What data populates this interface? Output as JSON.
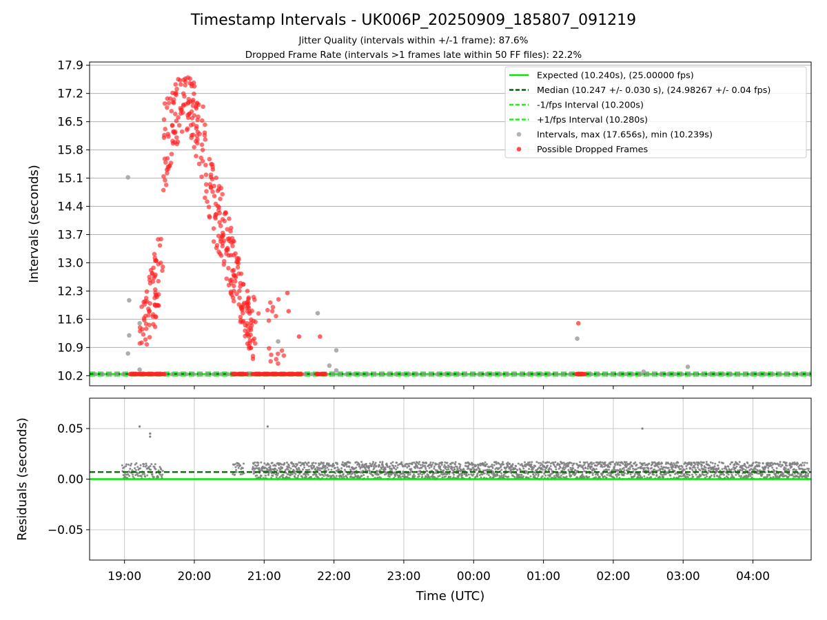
{
  "title": "Timestamp Intervals - UK006P_20250909_185807_091219",
  "subtitle_lines": [
    "Jitter Quality (intervals within +/-1 frame): 87.6%",
    "Dropped Frame Rate (intervals >1 frames late within 50 FF files): 22.2%"
  ],
  "colors": {
    "expected": "#00e600",
    "median": "#006400",
    "fps_bounds": "#22ee22",
    "intervals": "#a0a0a0",
    "dropped": "#ff2222",
    "residuals": "#808080"
  },
  "chart_data": [
    {
      "type": "scatter",
      "panel": "top",
      "title": "Timestamp Intervals - UK006P_20250909_185807_091219",
      "xlabel": "",
      "ylabel": "Intervals (seconds)",
      "x_unit": "time (UTC), 2025-09-09 to 2025-09-10",
      "xlim": [
        "18:30",
        "04:50"
      ],
      "ylim": [
        9.95,
        17.98
      ],
      "yticks": [
        "10.2",
        "10.9",
        "11.6",
        "12.3",
        "13.0",
        "13.7",
        "14.4",
        "15.1",
        "15.8",
        "16.5",
        "17.2",
        "17.9"
      ],
      "grid": true,
      "legend_position": "upper right",
      "legend": [
        "Expected (10.240s), (25.00000 fps)",
        "Median (10.247 +/- 0.030 s), (24.98267 +/- 0.04 fps)",
        "-1/fps Interval (10.200s)",
        "+1/fps Interval (10.280s)",
        "Intervals, max (17.656s), min (10.239s)",
        "Possible Dropped Frames"
      ],
      "lines": [
        {
          "name": "Expected (10.240s), (25.00000 fps)",
          "y": 10.24
        },
        {
          "name": "Median (10.247 +/- 0.030 s), (24.98267 +/- 0.04 fps)",
          "y": 10.247
        },
        {
          "name": "-1/fps Interval (10.200s)",
          "y": 10.2
        },
        {
          "name": "+1/fps Interval (10.280s)",
          "y": 10.28
        }
      ],
      "series": [
        {
          "name": "Intervals, max (17.656s), min (10.239s)",
          "baseline_value": 10.24,
          "baseline_from": "18:35",
          "baseline_to": "04:48",
          "outliers": [
            {
              "x": "19:03",
              "y": 15.12
            },
            {
              "x": "19:04",
              "y": 12.07
            },
            {
              "x": "19:04",
              "y": 11.2
            },
            {
              "x": "19:03",
              "y": 10.75
            },
            {
              "x": "19:13",
              "y": 10.35
            },
            {
              "x": "19:13",
              "y": 11.5
            },
            {
              "x": "21:12",
              "y": 11.05
            },
            {
              "x": "21:46",
              "y": 11.75
            },
            {
              "x": "21:56",
              "y": 10.45
            },
            {
              "x": "22:02",
              "y": 10.83
            },
            {
              "x": "22:02",
              "y": 10.33
            },
            {
              "x": "01:29",
              "y": 11.12
            },
            {
              "x": "02:26",
              "y": 10.3
            },
            {
              "x": "03:04",
              "y": 10.42
            }
          ]
        },
        {
          "name": "Possible Dropped Frames",
          "clusters": [
            {
              "x_from": "19:13",
              "x_to": "19:33",
              "y_from": 10.6,
              "y_to": 14.05,
              "count": 70
            },
            {
              "x_from": "19:33",
              "x_to": "20:10",
              "y_from": 14.4,
              "y_to": 17.66,
              "count": 130
            },
            {
              "x_from": "20:10",
              "x_to": "20:50",
              "y_from": 10.6,
              "y_to": 16.4,
              "count": 170
            },
            {
              "x_from": "20:50",
              "x_to": "21:20",
              "y_from": 10.5,
              "y_to": 12.3,
              "count": 25
            }
          ],
          "points": [
            {
              "x": "21:20",
              "y": 12.25
            },
            {
              "x": "21:21",
              "y": 11.8
            },
            {
              "x": "21:30",
              "y": 11.17
            },
            {
              "x": "21:48",
              "y": 11.17
            },
            {
              "x": "01:30",
              "y": 11.5
            }
          ],
          "baseline_runs": [
            {
              "x_from": "19:05",
              "x_to": "19:35",
              "y": 10.24
            },
            {
              "x_from": "20:33",
              "x_to": "20:45",
              "y": 10.24
            },
            {
              "x_from": "20:50",
              "x_to": "21:33",
              "y": 10.24
            },
            {
              "x_from": "21:45",
              "x_to": "21:53",
              "y": 10.24
            },
            {
              "x_from": "01:28",
              "x_to": "01:36",
              "y": 10.24
            }
          ]
        }
      ]
    },
    {
      "type": "scatter",
      "panel": "bottom",
      "xlabel": "Time (UTC)",
      "ylabel": "Residuals (seconds)",
      "xlim": [
        "18:30",
        "04:50"
      ],
      "xticks": [
        "19:00",
        "20:00",
        "21:00",
        "22:00",
        "23:00",
        "00:00",
        "01:00",
        "02:00",
        "03:00",
        "04:00"
      ],
      "ylim": [
        -0.08,
        0.08
      ],
      "yticks": [
        "0.05",
        "0.00",
        "−0.05"
      ],
      "grid": true,
      "lines": [
        {
          "name": "Expected",
          "y": 0.0
        },
        {
          "name": "Median",
          "y": 0.007
        }
      ],
      "series": [
        {
          "name": "Residuals",
          "dense_bands": [
            {
              "x_from": "18:58",
              "x_to": "19:33",
              "y_from": 0.0,
              "y_to": 0.016
            },
            {
              "x_from": "20:33",
              "x_to": "20:43",
              "y_from": 0.004,
              "y_to": 0.016
            },
            {
              "x_from": "20:50",
              "x_to": "04:48",
              "y_from": 0.0,
              "y_to": 0.017
            }
          ],
          "outliers": [
            {
              "x": "19:13",
              "y": 0.052
            },
            {
              "x": "19:22",
              "y": 0.045
            },
            {
              "x": "19:22",
              "y": 0.042
            },
            {
              "x": "21:03",
              "y": 0.052
            },
            {
              "x": "02:25",
              "y": 0.05
            }
          ]
        }
      ]
    }
  ]
}
